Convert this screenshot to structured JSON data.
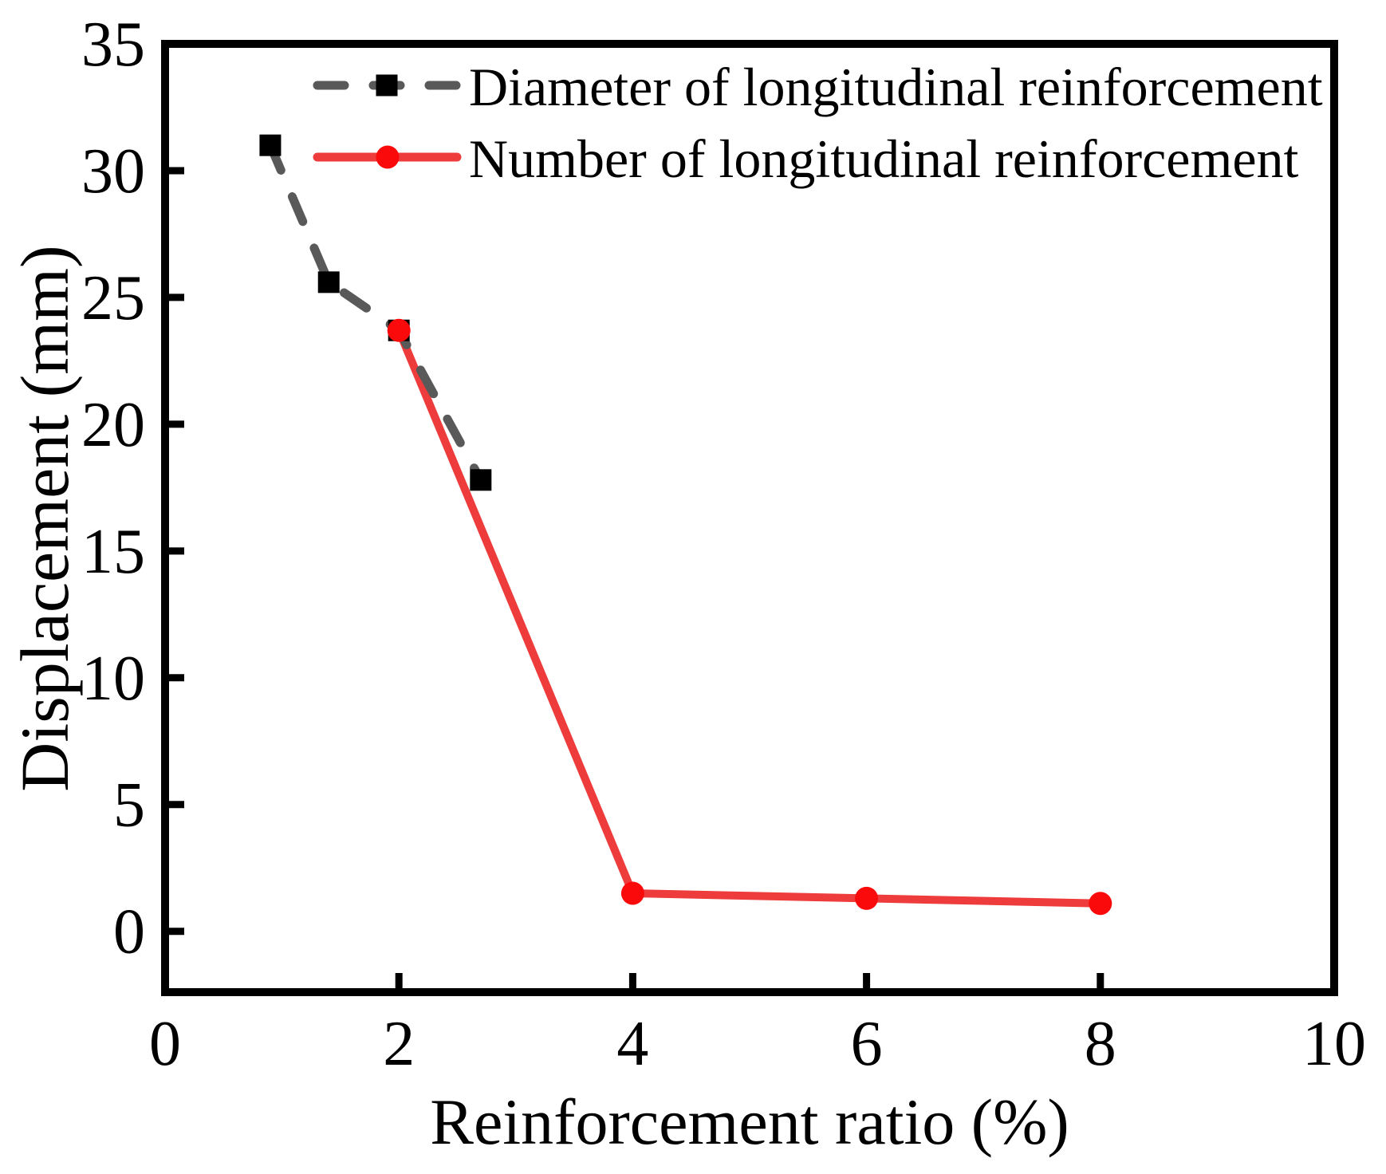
{
  "figure": {
    "background": "#ffffff",
    "frame_color": "#000000"
  },
  "chart_data": {
    "type": "line",
    "title": "",
    "xlabel": "Reinforcement ratio (%)",
    "ylabel": "Displacement (mm)",
    "xlim": [
      0,
      10
    ],
    "ylim": [
      -2.4,
      35
    ],
    "xticks": [
      "0",
      "2",
      "4",
      "6",
      "8",
      "10"
    ],
    "xtick_values": [
      0,
      2,
      4,
      6,
      8,
      10
    ],
    "yticks": [
      "0",
      "5",
      "10",
      "15",
      "20",
      "25",
      "30",
      "35"
    ],
    "ytick_values": [
      0,
      5,
      10,
      15,
      20,
      25,
      30,
      35
    ],
    "grid": false,
    "legend_position": "top-inside",
    "series": [
      {
        "name": "Diameter of longitudinal reinforcement",
        "line_style": "dashed",
        "line_color": "#595959",
        "marker": "square",
        "marker_color": "#000000",
        "points": [
          [
            0.9,
            31.0
          ],
          [
            1.4,
            25.6
          ],
          [
            2.0,
            23.7
          ],
          [
            2.7,
            17.8
          ]
        ]
      },
      {
        "name": "Number of longitudinal reinforcement",
        "line_style": "solid",
        "line_color": "#ee3b3b",
        "marker": "circle",
        "marker_color": "#fa0a0a",
        "points": [
          [
            2.0,
            23.7
          ],
          [
            4.0,
            1.5
          ],
          [
            6.0,
            1.3
          ],
          [
            8.0,
            1.1
          ]
        ]
      }
    ]
  }
}
